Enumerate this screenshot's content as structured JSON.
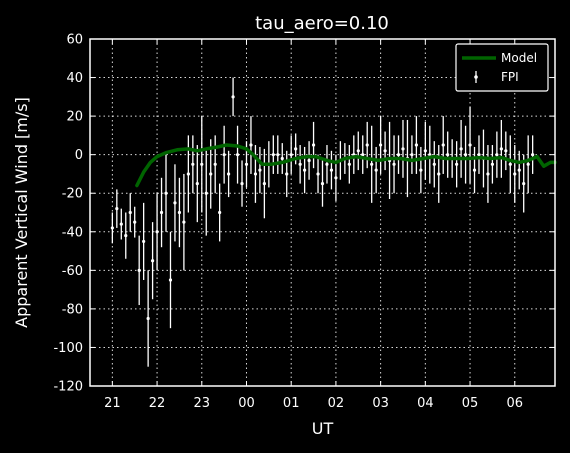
{
  "chart_data": {
    "type": "scatter",
    "title": "tau_aero=0.10",
    "xlabel": "UT",
    "ylabel": "Apparent Vertical Wind [m/s]",
    "xlim": [
      20.5,
      30.9
    ],
    "ylim": [
      -120,
      60
    ],
    "x_tick_values": [
      21,
      22,
      23,
      24,
      25,
      26,
      27,
      28,
      29,
      30
    ],
    "x_tick_labels": [
      "21",
      "22",
      "23",
      "00",
      "01",
      "02",
      "03",
      "04",
      "05",
      "06"
    ],
    "y_ticks": [
      -120,
      -100,
      -80,
      -60,
      -40,
      -20,
      0,
      20,
      40,
      60
    ],
    "grid": true,
    "legend_position": "top-right",
    "colors": {
      "model": "#006400",
      "fpi": "#ffffff",
      "background": "#000000",
      "grid": "#ffffff"
    },
    "series": [
      {
        "name": "Model",
        "kind": "line",
        "x": [
          21.55,
          21.7,
          21.85,
          22.0,
          22.2,
          22.45,
          22.7,
          22.9,
          23.1,
          23.35,
          23.55,
          23.8,
          24.0,
          24.15,
          24.35,
          24.55,
          24.8,
          25.1,
          25.35,
          25.55,
          25.8,
          26.0,
          26.2,
          26.45,
          26.7,
          26.95,
          27.2,
          27.45,
          27.7,
          27.95,
          28.2,
          28.45,
          28.7,
          28.95,
          29.2,
          29.45,
          29.7,
          29.9,
          30.1,
          30.3,
          30.5,
          30.65,
          30.8,
          30.9
        ],
        "y": [
          -16,
          -9,
          -4,
          -1,
          1,
          2.5,
          3,
          2,
          3,
          4,
          5,
          4.5,
          3,
          0,
          -5,
          -5,
          -4,
          -2,
          -1,
          -1,
          -3,
          -4,
          -2,
          -1,
          -2,
          -3,
          -2,
          -2,
          -3,
          -2,
          -1,
          -2,
          -2,
          -2,
          -1.5,
          -2,
          -1.5,
          -3,
          -4,
          -3,
          -1,
          -6,
          -4,
          -4
        ]
      },
      {
        "name": "FPI",
        "kind": "errorbar",
        "x": [
          21.0,
          21.1,
          21.2,
          21.3,
          21.4,
          21.5,
          21.6,
          21.7,
          21.8,
          21.9,
          22.0,
          22.1,
          22.2,
          22.3,
          22.4,
          22.5,
          22.6,
          22.7,
          22.8,
          22.9,
          23.0,
          23.1,
          23.2,
          23.3,
          23.4,
          23.5,
          23.6,
          23.7,
          23.8,
          23.9,
          24.0,
          24.1,
          24.2,
          24.3,
          24.4,
          24.5,
          24.6,
          24.7,
          24.8,
          24.9,
          25.0,
          25.1,
          25.2,
          25.3,
          25.4,
          25.5,
          25.6,
          25.7,
          25.8,
          25.9,
          26.0,
          26.1,
          26.2,
          26.3,
          26.4,
          26.5,
          26.6,
          26.7,
          26.8,
          26.9,
          27.0,
          27.1,
          27.2,
          27.3,
          27.4,
          27.5,
          27.6,
          27.7,
          27.8,
          27.9,
          28.0,
          28.1,
          28.2,
          28.3,
          28.4,
          28.5,
          28.6,
          28.7,
          28.8,
          28.9,
          29.0,
          29.1,
          29.2,
          29.3,
          29.4,
          29.5,
          29.6,
          29.7,
          29.8,
          29.9,
          30.0,
          30.1,
          30.2,
          30.3,
          30.4
        ],
        "y": [
          -38,
          -28,
          -36,
          -42,
          -30,
          -35,
          -60,
          -45,
          -85,
          -55,
          -40,
          -30,
          -20,
          -65,
          -25,
          -30,
          -35,
          -10,
          -5,
          -15,
          -5,
          -20,
          -10,
          -5,
          -30,
          0,
          -10,
          30,
          0,
          -15,
          -5,
          5,
          -10,
          -8,
          -15,
          -5,
          0,
          0,
          -2,
          -10,
          0,
          3,
          -5,
          -8,
          -3,
          5,
          -10,
          -15,
          -5,
          -8,
          -12,
          -3,
          -2,
          -5,
          0,
          2,
          0,
          5,
          -5,
          -8,
          5,
          2,
          -3,
          -5,
          0,
          3,
          -2,
          0,
          5,
          -8,
          2,
          0,
          -5,
          -10,
          5,
          0,
          -2,
          -5,
          3,
          0,
          5,
          -8,
          0,
          -2,
          -10,
          -5,
          0,
          3,
          2,
          -5,
          -10,
          -8,
          -15,
          -5,
          0
        ],
        "err": [
          8,
          10,
          8,
          12,
          10,
          8,
          18,
          20,
          25,
          20,
          20,
          18,
          20,
          25,
          20,
          18,
          25,
          20,
          15,
          20,
          25,
          22,
          18,
          15,
          15,
          15,
          12,
          10,
          15,
          12,
          12,
          15,
          15,
          12,
          18,
          12,
          10,
          10,
          8,
          12,
          10,
          8,
          10,
          12,
          10,
          12,
          10,
          12,
          10,
          10,
          12,
          10,
          8,
          10,
          10,
          10,
          10,
          12,
          20,
          12,
          15,
          10,
          20,
          15,
          10,
          15,
          20,
          10,
          15,
          12,
          15,
          15,
          12,
          15,
          15,
          12,
          10,
          12,
          15,
          15,
          20,
          12,
          10,
          15,
          15,
          10,
          12,
          15,
          10,
          15,
          15,
          10,
          15,
          15,
          10
        ]
      }
    ]
  }
}
